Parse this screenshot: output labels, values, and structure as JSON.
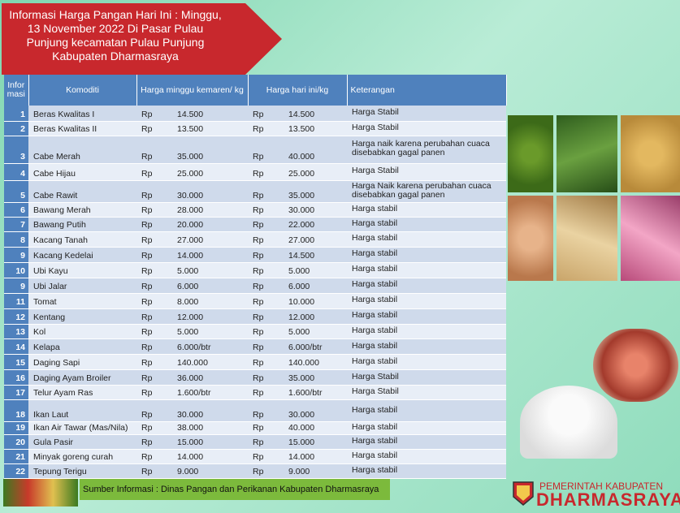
{
  "header": {
    "title": "Informasi Harga Pangan Hari Ini : Minggu, 13 November 2022 Di Pasar Pulau Punjung kecamatan Pulau Punjung Kabupaten Dharmasraya"
  },
  "table": {
    "columns": [
      "Informasi",
      "Komoditi",
      "Harga minggu kemaren/ kg",
      "Harga hari ini/kg",
      "Keterangan"
    ],
    "rows": [
      [
        "1",
        "Beras Kwalitas I",
        "Rp",
        "14.500",
        "Rp",
        "14.500",
        "Harga Stabil"
      ],
      [
        "2",
        "Beras Kwalitas II",
        "Rp",
        "13.500",
        "Rp",
        "13.500",
        "Harga Stabil"
      ],
      [
        "3",
        "Cabe Merah",
        "Rp",
        "35.000",
        "Rp",
        "40.000",
        "Harga naik karena perubahan cuaca disebabkan gagal panen"
      ],
      [
        "4",
        "Cabe Hijau",
        "Rp",
        "25.000",
        "Rp",
        "25.000",
        "Harga Stabil"
      ],
      [
        "5",
        "Cabe Rawit",
        "Rp",
        "30.000",
        "Rp",
        "35.000",
        "Harga Naik karena perubahan cuaca disebabkan gagal panen"
      ],
      [
        "6",
        "Bawang Merah",
        "Rp",
        "28.000",
        "Rp",
        "30.000",
        "Harga stabil"
      ],
      [
        "7",
        "Bawang Putih",
        "Rp",
        "20.000",
        "Rp",
        "22.000",
        "Harga stabil"
      ],
      [
        "8",
        "Kacang Tanah",
        "Rp",
        "27.000",
        "Rp",
        "27.000",
        "Harga stabil"
      ],
      [
        "9",
        "Kacang Kedelai",
        "Rp",
        "14.000",
        "Rp",
        "14.500",
        "Harga stabil"
      ],
      [
        "10",
        "Ubi Kayu",
        "Rp",
        "5.000",
        "Rp",
        "5.000",
        "Harga stabil"
      ],
      [
        "9",
        "Ubi Jalar",
        "Rp",
        "6.000",
        "Rp",
        "6.000",
        "Harga stabil"
      ],
      [
        "11",
        "Tomat",
        "Rp",
        "8.000",
        "Rp",
        "10.000",
        "Harga stabil"
      ],
      [
        "12",
        "Kentang",
        "Rp",
        "12.000",
        "Rp",
        "12.000",
        "Harga stabil"
      ],
      [
        "13",
        "Kol",
        "Rp",
        "5.000",
        "Rp",
        "5.000",
        "Harga stabil"
      ],
      [
        "14",
        "Kelapa",
        "Rp",
        "6.000/btr",
        "Rp",
        "6.000/btr",
        "Harga stabil"
      ],
      [
        "15",
        "Daging Sapi",
        "Rp",
        "140.000",
        "Rp",
        "140.000",
        "Harga stabil"
      ],
      [
        "16",
        "Daging Ayam Broiler",
        "Rp",
        "36.000",
        "Rp",
        "35.000",
        "Harga Stabil"
      ],
      [
        "17",
        "Telur Ayam Ras",
        "Rp",
        "1.600/btr",
        "Rp",
        "1.600/btr",
        "Harga Stabil"
      ],
      [
        "18",
        "Ikan Laut",
        "Rp",
        "30.000",
        "Rp",
        "30.000",
        "Harga stabil"
      ],
      [
        "19",
        "Ikan Air Tawar (Mas/Nila)",
        "Rp",
        "38.000",
        "Rp",
        "40.000",
        "Harga stabil"
      ],
      [
        "20",
        "Gula Pasir",
        "Rp",
        "15.000",
        "Rp",
        "15.000",
        "Harga stabil"
      ],
      [
        "21",
        "Minyak goreng curah",
        "Rp",
        "14.000",
        "Rp",
        "14.000",
        "Harga stabil"
      ],
      [
        "22",
        "Tepung Terigu",
        "Rp",
        "9.000",
        "Rp",
        "9.000",
        "Harga stabil"
      ]
    ]
  },
  "footer": {
    "source": "Sumber Informasi : Dinas Pangan dan Perikanan Kabupaten Dharmasraya"
  },
  "logo": {
    "line1": "PEMERINTAH KABUPATEN",
    "line2": "DHARMASRAYA"
  }
}
